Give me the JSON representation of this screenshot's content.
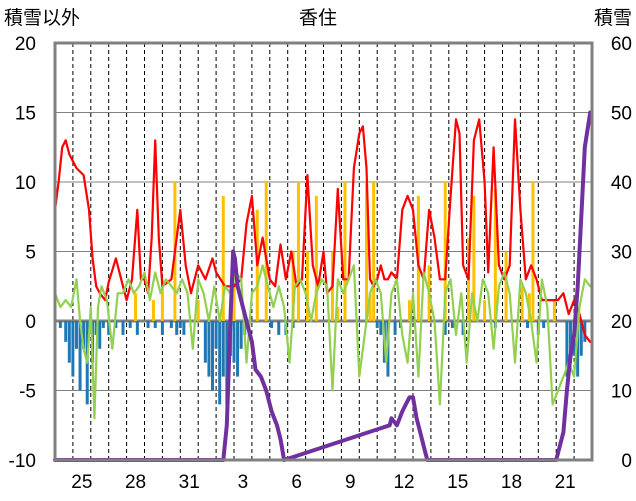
{
  "chart_data": {
    "type": "line",
    "title": "香住",
    "ylabel_left": "積雪以外",
    "ylabel_right": "積雪",
    "ylim_left": [
      -10,
      20
    ],
    "ylim_right": [
      0,
      60
    ],
    "yticks_left": [
      "20",
      "15",
      "10",
      "5",
      "0",
      "-5",
      "-10"
    ],
    "yticks_right": [
      "60",
      "50",
      "40",
      "30",
      "20",
      "10",
      "0"
    ],
    "xticks": [
      "25",
      "28",
      "31",
      "3",
      "6",
      "9",
      "12",
      "15",
      "18",
      "21"
    ],
    "xrange_days": [
      0,
      30
    ],
    "xtick_positions": [
      1.5,
      4.5,
      7.5,
      10.5,
      13.5,
      16.5,
      19.5,
      22.5,
      25.5,
      28.5
    ],
    "colors": {
      "max_temperature": "#ff0000",
      "min_temperature": "#92d050",
      "precip_rain": "#ffc000",
      "precip_snow": "#1f77b4",
      "snow_depth": "#7030a0",
      "frame": "#808080",
      "grid": "#000000"
    },
    "series": [
      {
        "axis": "left",
        "color": "#ff0000",
        "x": [
          0,
          0.2,
          0.4,
          0.6,
          0.8,
          1.2,
          1.6,
          1.9,
          2.1,
          2.3,
          2.5,
          2.8,
          3.0,
          3.4,
          3.8,
          4.0,
          4.3,
          4.6,
          4.8,
          5.0,
          5.2,
          5.4,
          5.6,
          5.8,
          6.0,
          6.5,
          7.0,
          7.3,
          7.6,
          8.0,
          8.4,
          8.8,
          9.0,
          9.5,
          10.0,
          10.4,
          10.7,
          11.0,
          11.3,
          11.6,
          12.0,
          12.3,
          12.6,
          12.9,
          13.2,
          13.5,
          13.8,
          14.1,
          14.4,
          14.7,
          15.0,
          15.2,
          15.5,
          15.8,
          16.1,
          16.4,
          16.7,
          17.0,
          17.2,
          17.4,
          17.6,
          17.8,
          18.0,
          18.2,
          18.4,
          18.6,
          18.8,
          19.1,
          19.4,
          19.7,
          20.0,
          20.3,
          20.6,
          20.9,
          21.2,
          21.5,
          21.8,
          22.1,
          22.4,
          22.6,
          22.8,
          23.1,
          23.4,
          23.7,
          24.0,
          24.2,
          24.5,
          24.8,
          25.1,
          25.4,
          25.7,
          26.0,
          26.3,
          26.6,
          26.9,
          27.2,
          27.5,
          27.8,
          28.1,
          28.4,
          28.7,
          29.0,
          29.3,
          29.6,
          29.9
        ],
        "y": [
          8,
          10,
          12.5,
          13,
          12,
          11,
          10.5,
          8,
          4.5,
          2.5,
          2,
          1.5,
          2.8,
          4.5,
          2.5,
          1.5,
          3,
          8,
          3,
          3,
          2,
          6,
          13,
          6,
          2.5,
          3,
          8,
          4,
          2,
          4,
          3,
          4.5,
          3.5,
          2.5,
          2.5,
          3,
          7,
          9,
          4,
          6,
          3,
          2.5,
          5.5,
          3,
          5,
          2.5,
          3,
          10.5,
          4,
          2.5,
          5,
          2,
          2.5,
          9.5,
          3,
          3,
          11,
          13.5,
          14,
          11,
          3,
          2.5,
          3,
          4,
          3,
          3,
          3.5,
          3,
          8,
          9,
          8,
          4,
          3,
          8,
          6,
          3,
          3,
          9,
          14.5,
          13.5,
          4,
          3,
          13,
          14.5,
          10,
          3.5,
          12.5,
          4,
          3,
          4,
          14.5,
          8,
          3,
          4,
          3,
          1.5,
          1.5,
          1.5,
          1.5,
          2,
          0.5,
          1.5,
          0.5,
          -1,
          -1.5
        ]
      },
      {
        "axis": "left",
        "color": "#92d050",
        "x": [
          0,
          0.3,
          0.6,
          0.9,
          1.2,
          1.4,
          1.6,
          1.8,
          2.0,
          2.2,
          2.4,
          2.6,
          2.9,
          3.2,
          3.5,
          3.8,
          4.1,
          4.4,
          4.7,
          5.0,
          5.3,
          5.6,
          5.9,
          6.2,
          6.5,
          6.8,
          7.1,
          7.4,
          7.7,
          8.0,
          8.3,
          8.6,
          8.9,
          9.2,
          9.5,
          9.8,
          10.1,
          10.4,
          10.7,
          11.0,
          11.3,
          11.6,
          11.9,
          12.2,
          12.5,
          12.8,
          13.1,
          13.4,
          13.7,
          14.0,
          14.3,
          14.6,
          14.9,
          15.2,
          15.5,
          15.8,
          16.1,
          16.4,
          16.7,
          17.0,
          17.3,
          17.6,
          17.9,
          18.2,
          18.5,
          18.8,
          19.1,
          19.4,
          19.7,
          20.0,
          20.3,
          20.6,
          20.9,
          21.2,
          21.5,
          21.8,
          22.1,
          22.4,
          22.7,
          23.0,
          23.3,
          23.6,
          23.9,
          24.2,
          24.5,
          24.8,
          25.1,
          25.4,
          25.7,
          26.0,
          26.3,
          26.6,
          26.9,
          27.2,
          27.5,
          27.8,
          28.1,
          28.4,
          28.7,
          29.0,
          29.3,
          29.6,
          29.9
        ],
        "y": [
          2,
          1,
          1.5,
          1,
          3,
          0,
          -2,
          -3,
          1,
          -7,
          1,
          2.5,
          1.5,
          -2,
          2,
          2,
          3,
          2,
          2.5,
          3.5,
          1.5,
          3.5,
          2,
          3,
          2.5,
          2,
          3,
          2,
          -2,
          3,
          2,
          0,
          2.5,
          0,
          2.5,
          2,
          3.5,
          3,
          -3,
          2,
          2.5,
          4,
          2.5,
          1,
          2.5,
          1,
          -3,
          2.5,
          3,
          2,
          0,
          2,
          3,
          2.5,
          -5,
          3,
          2,
          3,
          4,
          -4,
          -1,
          2,
          3,
          2,
          -3,
          2,
          3,
          -1,
          -3,
          2,
          -4,
          3.5,
          2,
          0,
          -6,
          2,
          3,
          -1,
          2,
          -3,
          2,
          0,
          3,
          2,
          -2,
          2.5,
          3.5,
          2,
          -3,
          3,
          2,
          0,
          -3,
          3,
          1,
          -6,
          -5,
          -4,
          -3,
          -4,
          1,
          3,
          2.5
        ]
      },
      {
        "axis": "right",
        "color": "#7030a0",
        "x": [
          0,
          9.4,
          9.6,
          9.8,
          9.95,
          10.05,
          10.2,
          10.5,
          10.8,
          11.0,
          11.2,
          11.5,
          11.8,
          12.1,
          12.4,
          12.6,
          12.8,
          18.7,
          18.8,
          19.1,
          19.4,
          19.6,
          19.8,
          20.0,
          20.2,
          20.4,
          20.6,
          20.8,
          28.0,
          28.2,
          28.4,
          28.6,
          28.8,
          29.0,
          29.2,
          29.4,
          29.6,
          29.9
        ],
        "y": [
          0,
          0,
          5,
          20,
          30,
          29,
          25,
          22,
          19,
          17,
          13,
          12,
          10,
          7,
          5,
          3,
          0,
          5,
          6,
          5,
          7,
          8,
          9,
          9,
          6,
          4,
          2,
          0,
          0,
          2,
          4,
          10,
          15,
          18,
          25,
          35,
          45,
          50
        ]
      }
    ],
    "bars_rain": {
      "color": "#ffc000",
      "x": [
        4.5,
        5.5,
        6.0,
        6.7,
        8.0,
        9.4,
        10.0,
        11.3,
        11.8,
        13.3,
        13.6,
        14.1,
        14.6,
        15.5,
        15.8,
        16.2,
        17.4,
        17.6,
        17.8,
        19.8,
        20.3,
        20.9,
        21.8,
        23.1,
        23.4,
        24.0,
        24.6,
        25.2,
        26.1,
        26.5,
        26.7,
        27.9
      ],
      "y": [
        2,
        1.5,
        3,
        10,
        1.5,
        9,
        2.5,
        8,
        10,
        5,
        10,
        5,
        9,
        5,
        1,
        10,
        10,
        2,
        10,
        1.5,
        9,
        4,
        10,
        6,
        9,
        1.5,
        9.5,
        5,
        2.5,
        2,
        10,
        1.5
      ]
    },
    "bars_snow": {
      "color": "#1f77b4",
      "x": [
        0.3,
        0.6,
        0.8,
        1.0,
        1.2,
        1.4,
        1.6,
        1.8,
        2.1,
        2.3,
        2.5,
        2.7,
        3.0,
        3.4,
        3.8,
        4.2,
        4.6,
        5.2,
        5.6,
        6.0,
        6.5,
        6.8,
        7.0,
        7.2,
        8.4,
        8.6,
        8.8,
        9.0,
        9.2,
        9.4,
        9.6,
        9.8,
        10.0,
        10.2,
        10.4,
        10.6,
        10.8,
        12.1,
        12.5,
        12.9,
        13.3,
        18.0,
        18.2,
        18.4,
        18.6,
        19.0,
        19.3,
        21.8,
        22.2,
        22.8,
        24.6,
        26.4,
        27.0,
        27.3,
        28.6,
        28.8,
        29.0,
        29.2,
        29.4,
        29.6
      ],
      "y": [
        -0.5,
        -1.5,
        -3,
        -4,
        -2,
        -5,
        -2,
        -6,
        -3,
        -1,
        -2,
        -0.5,
        -1,
        -0.5,
        -1,
        -0.5,
        -1,
        -0.5,
        -0.5,
        -1,
        -0.5,
        -1,
        -0.5,
        -1,
        -3,
        -4,
        -5,
        -2,
        -6,
        -4,
        -6,
        -2.5,
        -3,
        -4,
        -2,
        -1,
        -0.5,
        -0.5,
        -1,
        -1,
        -0.5,
        -0.5,
        -1,
        -3,
        -4,
        -1,
        -0.5,
        -1,
        -0.5,
        -1,
        -0.5,
        -0.5,
        -1,
        -0.5,
        -4,
        -3,
        -2.5,
        -4,
        -2.5,
        -1.5
      ]
    }
  }
}
